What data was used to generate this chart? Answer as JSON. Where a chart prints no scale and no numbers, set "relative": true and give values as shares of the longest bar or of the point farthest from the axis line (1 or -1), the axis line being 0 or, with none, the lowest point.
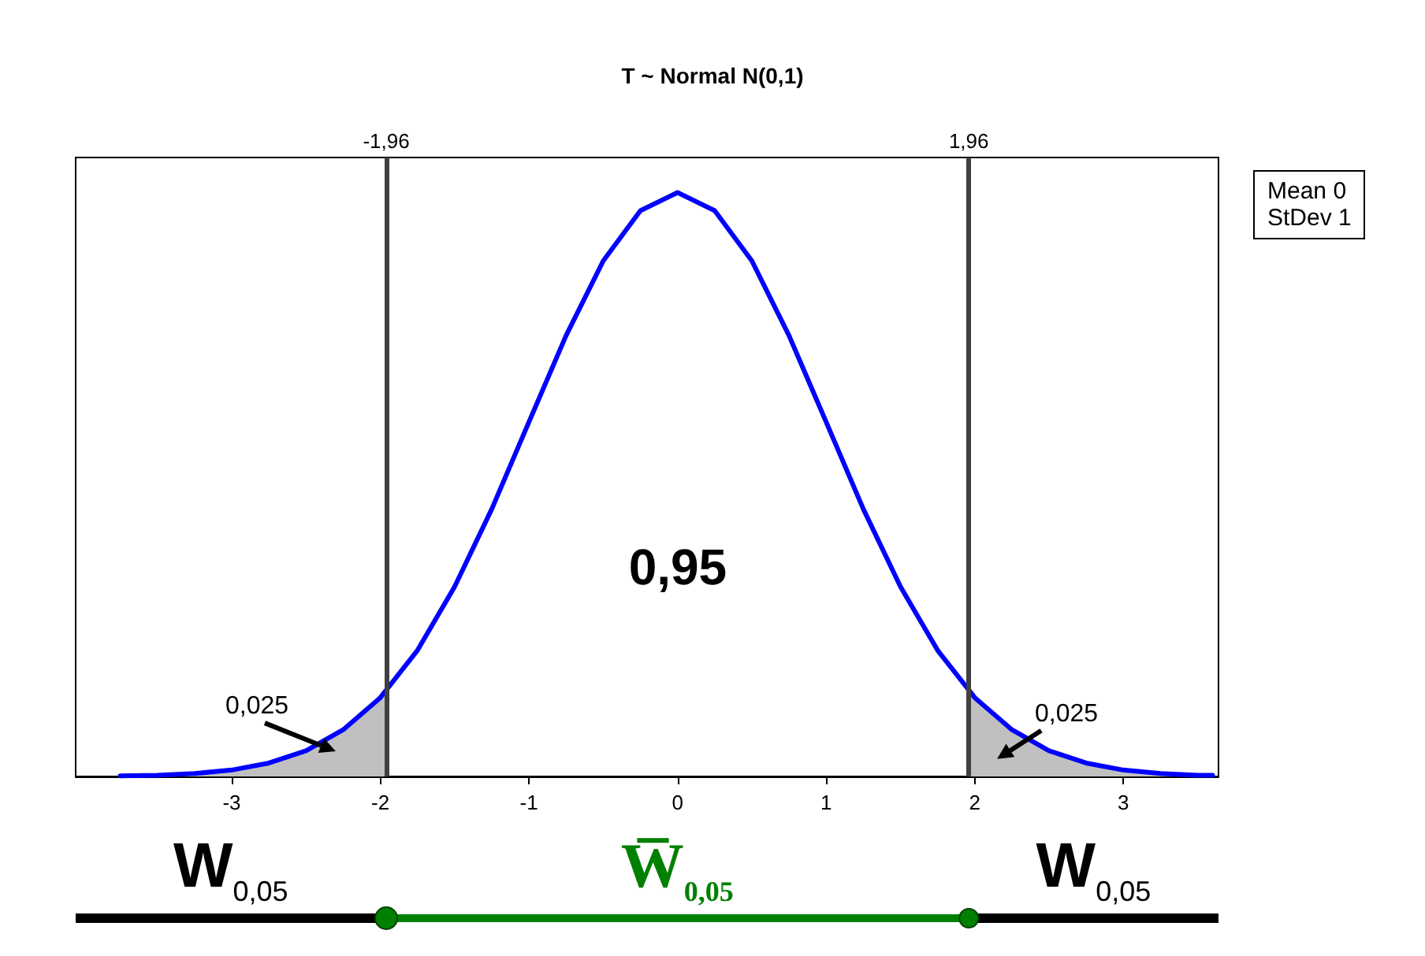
{
  "chart_data": {
    "type": "line",
    "title": "T ~ Normal N(0,1)",
    "relative": true,
    "marker": "none",
    "grid": false,
    "tick_labels": "x",
    "xlim": [
      -4.05,
      3.64
    ],
    "xticks": [
      -3,
      -2,
      -1,
      0,
      1,
      2,
      3
    ],
    "x": [
      -3.75,
      -3.5,
      -3.25,
      -3,
      -2.75,
      -2.5,
      -2.25,
      -2,
      -1.75,
      -1.5,
      -1.25,
      -1,
      -0.75,
      -0.5,
      -0.25,
      0,
      0.25,
      0.5,
      0.75,
      1,
      1.25,
      1.5,
      1.75,
      2,
      2.25,
      2.5,
      2.75,
      3,
      3.25,
      3.5,
      3.6
    ],
    "series": [
      {
        "color": "#0000ff",
        "values": [
          0.001,
          0.002,
          0.005,
          0.011,
          0.023,
          0.044,
          0.08,
          0.135,
          0.216,
          0.325,
          0.458,
          0.607,
          0.755,
          0.883,
          0.969,
          1,
          0.969,
          0.883,
          0.755,
          0.607,
          0.458,
          0.325,
          0.216,
          0.135,
          0.08,
          0.044,
          0.023,
          0.011,
          0.005,
          0.002,
          0.002
        ]
      },
      {
        "type": "area",
        "color": "#c0c0c0",
        "x": [
          -3.75,
          -3.5,
          -3.25,
          -3,
          -2.75,
          -2.5,
          -2.25,
          -1.96
        ],
        "values": [
          0.001,
          0.002,
          0.005,
          0.011,
          0.023,
          0.044,
          0.08,
          0.147
        ]
      },
      {
        "type": "area",
        "color": "#c0c0c0",
        "x": [
          1.96,
          2.25,
          2.5,
          2.75,
          3,
          3.25,
          3.5,
          3.6
        ],
        "values": [
          0.147,
          0.08,
          0.044,
          0.023,
          0.011,
          0.005,
          0.002,
          0.002
        ]
      }
    ],
    "ref_lines": [
      {
        "axis": "x",
        "value": -1.96,
        "label": "-1,96",
        "color": "#404040"
      },
      {
        "axis": "x",
        "value": 1.96,
        "label": "1,96",
        "color": "#404040"
      }
    ],
    "annotations": [
      "0,95",
      "0,025",
      "0,025",
      "Mean 0",
      "StDev 1",
      "W$_{0,05}$",
      "W̅$_{0,05}$",
      "W$_{0,05}$"
    ]
  }
}
